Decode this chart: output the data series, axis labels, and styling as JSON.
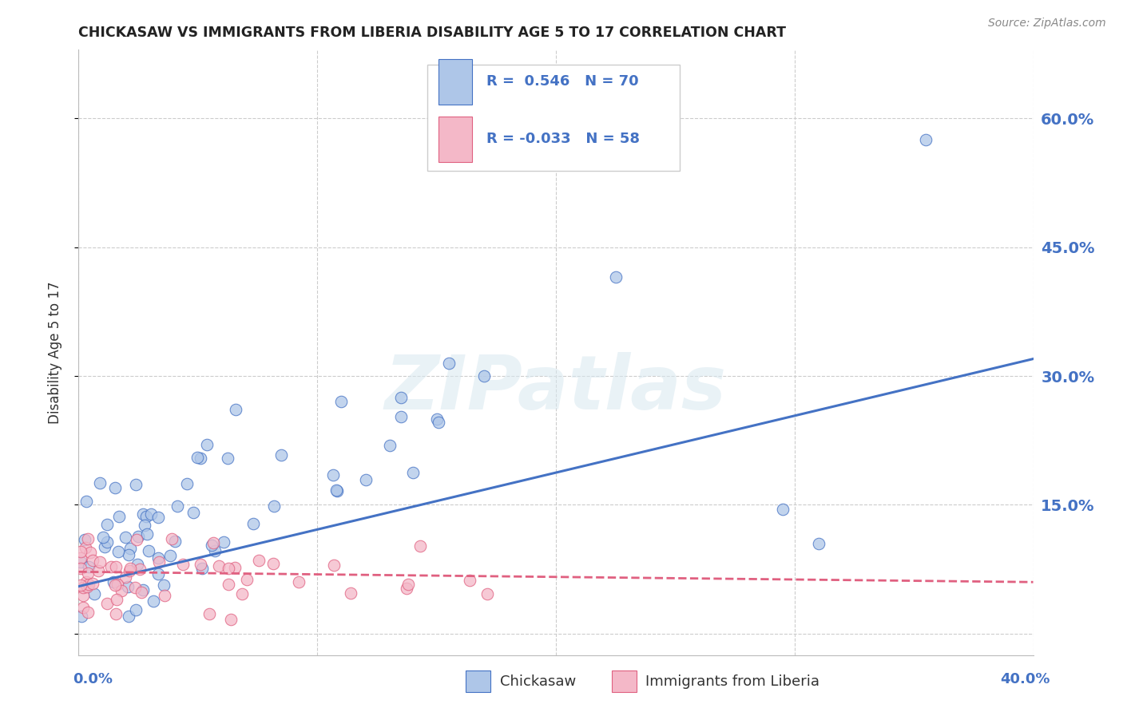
{
  "title": "CHICKASAW VS IMMIGRANTS FROM LIBERIA DISABILITY AGE 5 TO 17 CORRELATION CHART",
  "source": "Source: ZipAtlas.com",
  "ylabel": "Disability Age 5 to 17",
  "xlim": [
    0.0,
    0.4
  ],
  "ylim": [
    -0.025,
    0.68
  ],
  "xticks": [
    0.0,
    0.1,
    0.2,
    0.3,
    0.4
  ],
  "ytick_positions": [
    0.0,
    0.15,
    0.3,
    0.45,
    0.6
  ],
  "ytick_labels": [
    "",
    "15.0%",
    "30.0%",
    "45.0%",
    "60.0%"
  ],
  "blue_R": "0.546",
  "blue_N": "70",
  "pink_R": "-0.033",
  "pink_N": "58",
  "blue_fill": "#aec6e8",
  "pink_fill": "#f4b8c8",
  "blue_edge": "#4472c4",
  "pink_edge": "#e06080",
  "blue_line": "#4472c4",
  "pink_line": "#e06080",
  "label_color": "#4472c4",
  "title_color": "#222222",
  "watermark": "ZIPatlas",
  "bg_color": "#ffffff",
  "grid_color": "#cccccc"
}
